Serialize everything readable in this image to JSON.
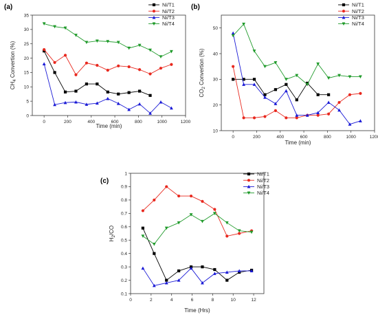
{
  "chart_data": [
    {
      "type": "line",
      "panel_label": "(a)",
      "xlabel": "Time (min)",
      "ylabel": "CH4 Convertion (%)",
      "xlim": [
        -100,
        1200
      ],
      "ylim": [
        0,
        35
      ],
      "xticks": [
        0,
        200,
        400,
        600,
        800,
        1000,
        1200
      ],
      "yticks": [
        0,
        5,
        10,
        15,
        20,
        25,
        30,
        35
      ],
      "legend": "top-right",
      "series": [
        {
          "name": "Ni/T1",
          "color": "#000000",
          "marker": "square",
          "x": [
            0,
            90,
            180,
            270,
            360,
            450,
            540,
            630,
            720,
            810,
            900
          ],
          "y": [
            22.5,
            15,
            8.2,
            8.5,
            11,
            11,
            8.2,
            7.5,
            8,
            8.5,
            7
          ]
        },
        {
          "name": "Ni/T2",
          "color": "#e8281e",
          "marker": "circle",
          "x": [
            0,
            90,
            180,
            270,
            360,
            450,
            540,
            630,
            720,
            810,
            900,
            990,
            1080
          ],
          "y": [
            23,
            18.5,
            21,
            14.2,
            18.3,
            17.5,
            15.8,
            17.3,
            17,
            16,
            14.5,
            16.5,
            17.8
          ]
        },
        {
          "name": "Ni/T3",
          "color": "#1a1ad6",
          "marker": "triangle-up",
          "x": [
            0,
            90,
            180,
            270,
            360,
            450,
            540,
            630,
            720,
            810,
            900,
            990,
            1080
          ],
          "y": [
            18,
            3.8,
            4.5,
            4.7,
            3.9,
            4.3,
            5.9,
            4.2,
            2.1,
            4,
            0.8,
            4.7,
            2.6
          ]
        },
        {
          "name": "Ni/T4",
          "color": "#1f9a2a",
          "marker": "triangle-down",
          "x": [
            0,
            90,
            180,
            270,
            360,
            450,
            540,
            630,
            720,
            810,
            900,
            990,
            1080
          ],
          "y": [
            32,
            31,
            30.5,
            28,
            25.5,
            26,
            25.8,
            25.5,
            23.5,
            24.5,
            22.8,
            20.5,
            22.3
          ]
        }
      ]
    },
    {
      "type": "line",
      "panel_label": "(b)",
      "xlabel": "Time (min)",
      "ylabel": "CO2 Convertion (%)",
      "xlim": [
        -100,
        1200
      ],
      "ylim": [
        10,
        55
      ],
      "xticks": [
        0,
        200,
        400,
        600,
        800,
        1000,
        1200
      ],
      "yticks": [
        10,
        20,
        30,
        40,
        50
      ],
      "legend": "top-right",
      "series": [
        {
          "name": "Ni/T1",
          "color": "#000000",
          "marker": "square",
          "x": [
            0,
            90,
            180,
            270,
            360,
            450,
            540,
            630,
            720,
            810
          ],
          "y": [
            30,
            30,
            30,
            24,
            26,
            28,
            22,
            28.5,
            24,
            24
          ]
        },
        {
          "name": "Ni/T2",
          "color": "#e8281e",
          "marker": "circle",
          "x": [
            0,
            90,
            180,
            270,
            360,
            450,
            540,
            630,
            720,
            810,
            900,
            990,
            1080
          ],
          "y": [
            35,
            15,
            15,
            15.5,
            17.8,
            15,
            15,
            16,
            16,
            16.5,
            21,
            24,
            24.5
          ]
        },
        {
          "name": "Ni/T3",
          "color": "#1a1ad6",
          "marker": "triangle-up",
          "x": [
            0,
            90,
            180,
            270,
            360,
            450,
            540,
            630,
            720,
            810,
            900,
            990,
            1080
          ],
          "y": [
            48,
            28,
            28,
            23,
            20.5,
            25.5,
            16,
            16,
            17,
            21,
            18,
            12.5,
            13.8
          ]
        },
        {
          "name": "Ni/T4",
          "color": "#1f9a2a",
          "marker": "triangle-down",
          "x": [
            0,
            90,
            180,
            270,
            360,
            450,
            540,
            630,
            720,
            810,
            900,
            990,
            1080
          ],
          "y": [
            47,
            51.5,
            41,
            35,
            36.5,
            30,
            31.5,
            28,
            36,
            30.5,
            31.5,
            31,
            31
          ]
        }
      ]
    },
    {
      "type": "line",
      "panel_label": "(c)",
      "xlabel": "Time (Hrs)",
      "ylabel": "H2/CO",
      "xlim": [
        0,
        13
      ],
      "ylim": [
        0.1,
        1.0
      ],
      "xticks": [
        0,
        2,
        4,
        6,
        8,
        10,
        12
      ],
      "yticks": [
        0.1,
        0.2,
        0.3,
        0.4,
        0.5,
        0.6,
        0.7,
        0.8,
        0.9,
        1.0
      ],
      "legend": "top-right",
      "series": [
        {
          "name": "Ni/T1",
          "color": "#000000",
          "marker": "square",
          "x": [
            1.2,
            2.3,
            3.5,
            4.7,
            5.9,
            7.0,
            8.2,
            9.4,
            10.6,
            11.8
          ],
          "y": [
            0.59,
            0.4,
            0.2,
            0.27,
            0.3,
            0.3,
            0.28,
            0.2,
            0.26,
            0.275
          ]
        },
        {
          "name": "Ni/T2",
          "color": "#e8281e",
          "marker": "circle",
          "x": [
            1.2,
            2.3,
            3.5,
            4.7,
            5.9,
            7.0,
            8.2,
            9.4,
            10.6,
            11.8
          ],
          "y": [
            0.72,
            0.8,
            0.9,
            0.83,
            0.83,
            0.79,
            0.73,
            0.53,
            0.55,
            0.57
          ]
        },
        {
          "name": "Ni/T3",
          "color": "#1a1ad6",
          "marker": "triangle-up",
          "x": [
            1.2,
            2.3,
            3.5,
            4.7,
            5.9,
            7.0,
            8.2,
            9.4,
            10.6,
            11.8
          ],
          "y": [
            0.29,
            0.16,
            0.18,
            0.2,
            0.29,
            0.18,
            0.25,
            0.26,
            0.27,
            0.27
          ]
        },
        {
          "name": "Ni/T4",
          "color": "#1f9a2a",
          "marker": "triangle-down",
          "x": [
            1.2,
            2.3,
            3.5,
            4.7,
            5.9,
            7.0,
            8.2,
            9.4,
            10.6,
            11.8
          ],
          "y": [
            0.53,
            0.47,
            0.59,
            0.63,
            0.69,
            0.64,
            0.7,
            0.63,
            0.57,
            0.56
          ]
        }
      ]
    }
  ]
}
